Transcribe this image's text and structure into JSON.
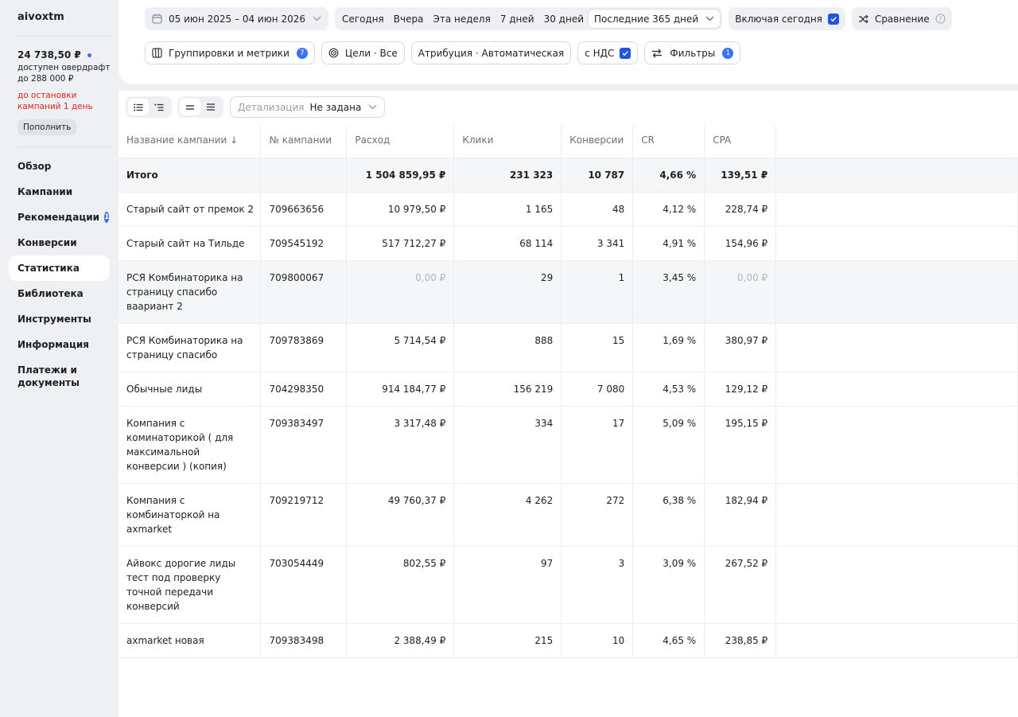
{
  "sidebar": {
    "account": "aivoxtm",
    "balance": "24 738,50 ₽",
    "overdraft": "доступен овердрафт до 288 000 ₽",
    "warning": "до остановки кампаний 1 день",
    "topup_label": "Пополнить",
    "nav": [
      {
        "label": "Обзор",
        "badge": ""
      },
      {
        "label": "Кампании",
        "badge": ""
      },
      {
        "label": "Рекомендации",
        "badge": "1"
      },
      {
        "label": "Конверсии",
        "badge": ""
      },
      {
        "label": "Статистика",
        "badge": "",
        "active": true
      },
      {
        "label": "Библиотека",
        "badge": ""
      },
      {
        "label": "Инструменты",
        "badge": ""
      },
      {
        "label": "Информация",
        "badge": ""
      },
      {
        "label": "Платежи и документы",
        "badge": ""
      }
    ]
  },
  "filters": {
    "date_range": "05 июн 2025 – 04 июн 2026",
    "periods": [
      "Сегодня",
      "Вчера",
      "Эта неделя",
      "7 дней",
      "30 дней",
      "Последние 365 дней"
    ],
    "selected_period": "Последние 365 дней",
    "include_today": "Включая сегодня",
    "compare": "Сравнение",
    "groupings": "Группировки и метрики",
    "groupings_badge": "7",
    "goals": "Цели · Все",
    "attribution": "Атрибуция · Автоматическая",
    "vat": "с НДС",
    "filters": "Фильтры",
    "filters_badge": "1"
  },
  "toolbar": {
    "detail_label": "Детализация",
    "detail_value": "Не задана"
  },
  "table": {
    "headers": [
      "Название кампании ↓",
      "№ кампании",
      "Расход",
      "Клики",
      "Конверсии",
      "CR",
      "CPA"
    ],
    "total": {
      "name": "Итого",
      "id": "",
      "spend": "1 504 859,95 ₽",
      "clicks": "231 323",
      "conv": "10 787",
      "cr": "4,66 %",
      "cpa": "139,51 ₽"
    },
    "rows": [
      {
        "name": "Старый сайт от премок 2",
        "id": "709663656",
        "spend": "10 979,50 ₽",
        "clicks": "1 165",
        "conv": "48",
        "cr": "4,12 %",
        "cpa": "228,74 ₽"
      },
      {
        "name": "Старый сайт на Тильде",
        "id": "709545192",
        "spend": "517 712,27 ₽",
        "clicks": "68 114",
        "conv": "3 341",
        "cr": "4,91 %",
        "cpa": "154,96 ₽"
      },
      {
        "name": "РСЯ Комбинаторика на страницу спасибо ваариант 2",
        "id": "709800067",
        "spend": "0,00 ₽",
        "clicks": "29",
        "conv": "1",
        "cr": "3,45 %",
        "cpa": "0,00 ₽"
      },
      {
        "name": "РСЯ Комбинаторика на страницу спасибо",
        "id": "709783869",
        "spend": "5 714,54 ₽",
        "clicks": "888",
        "conv": "15",
        "cr": "1,69 %",
        "cpa": "380,97 ₽"
      },
      {
        "name": "Обычные лиды",
        "id": "704298350",
        "spend": "914 184,77 ₽",
        "clicks": "156 219",
        "conv": "7 080",
        "cr": "4,53 %",
        "cpa": "129,12 ₽"
      },
      {
        "name": "Компания с коминаторикой ( для максимальной конверсии ) (копия)",
        "id": "709383497",
        "spend": "3 317,48 ₽",
        "clicks": "334",
        "conv": "17",
        "cr": "5,09 %",
        "cpa": "195,15 ₽"
      },
      {
        "name": "Компания с комбинаторкой на axmarket",
        "id": "709219712",
        "spend": "49 760,37 ₽",
        "clicks": "4 262",
        "conv": "272",
        "cr": "6,38 %",
        "cpa": "182,94 ₽"
      },
      {
        "name": "Айвокс дорогие лиды тест под проверку точной передачи конверсий",
        "id": "703054449",
        "spend": "802,55 ₽",
        "clicks": "97",
        "conv": "3",
        "cr": "3,09 %",
        "cpa": "267,52 ₽"
      },
      {
        "name": "axmarket новая",
        "id": "709383498",
        "spend": "2 388,49 ₽",
        "clicks": "215",
        "conv": "10",
        "cr": "4,65 %",
        "cpa": "238,85 ₽"
      }
    ]
  }
}
